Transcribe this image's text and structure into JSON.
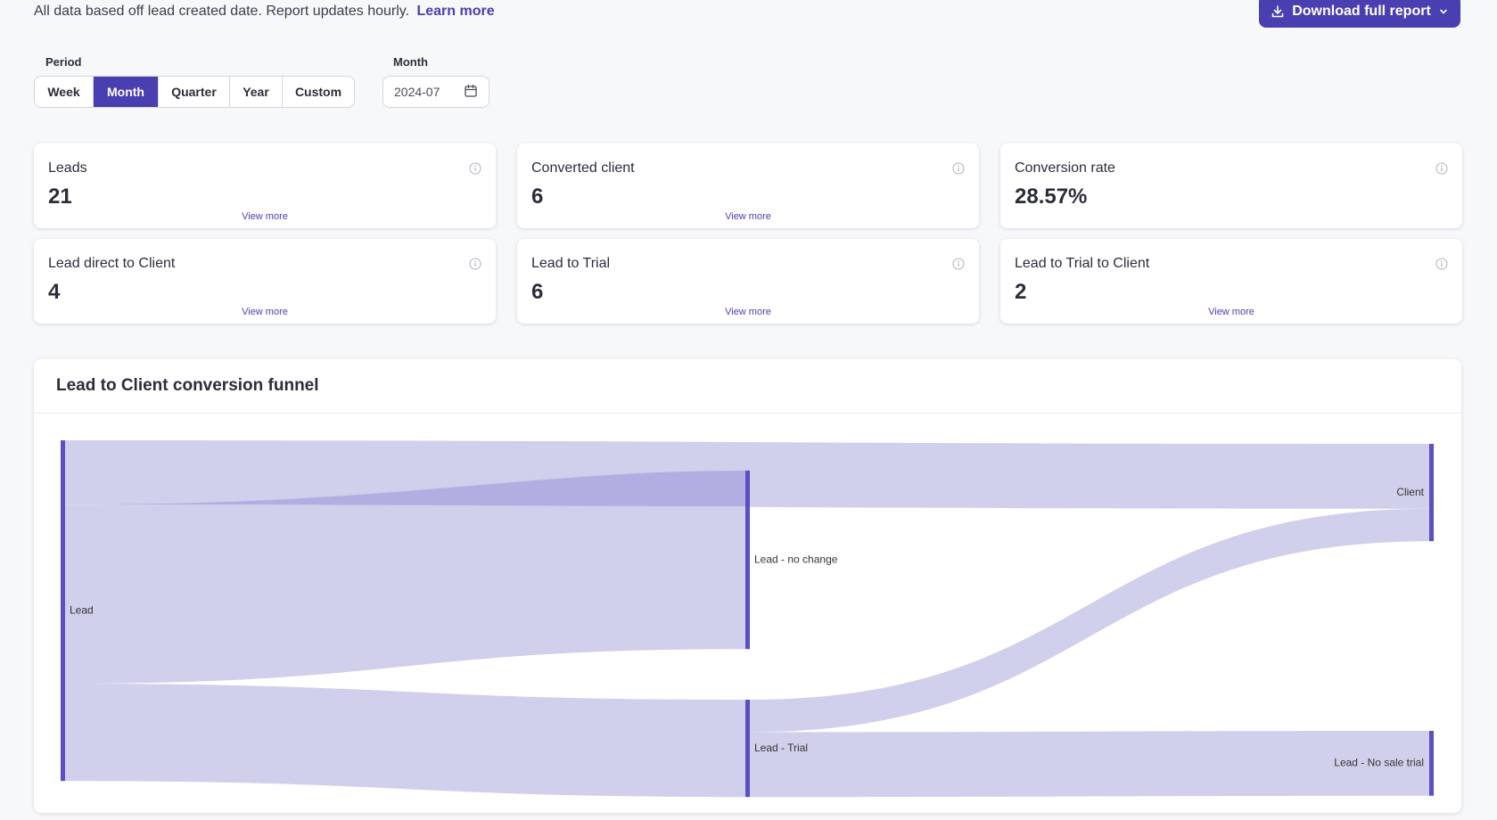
{
  "header": {
    "info_text": "All data based off lead created date. Report updates hourly.",
    "learn_more": "Learn more",
    "download_label": "Download full report"
  },
  "filters": {
    "period_label": "Period",
    "period_options": [
      "Week",
      "Month",
      "Quarter",
      "Year",
      "Custom"
    ],
    "period_selected": "Month",
    "month_label": "Month",
    "month_value": "2024-07"
  },
  "cards": [
    {
      "title": "Leads",
      "value": "21",
      "link": "View more"
    },
    {
      "title": "Converted client",
      "value": "6",
      "link": "View more"
    },
    {
      "title": "Conversion rate",
      "value": "28.57%",
      "link": ""
    },
    {
      "title": "Lead direct to Client",
      "value": "4",
      "link": "View more"
    },
    {
      "title": "Lead to Trial",
      "value": "6",
      "link": "View more"
    },
    {
      "title": "Lead to Trial to Client",
      "value": "2",
      "link": "View more"
    }
  ],
  "funnel": {
    "title": "Lead to Client conversion funnel",
    "nodes": [
      {
        "id": "lead",
        "label": "Lead"
      },
      {
        "id": "no_change",
        "label": "Lead - no change"
      },
      {
        "id": "trial",
        "label": "Lead - Trial"
      },
      {
        "id": "client",
        "label": "Client"
      },
      {
        "id": "no_sale",
        "label": "Lead - No sale trial"
      }
    ],
    "links": [
      {
        "source": "lead",
        "target": "client",
        "value": 4
      },
      {
        "source": "lead",
        "target": "no_change",
        "value": 11
      },
      {
        "source": "lead",
        "target": "trial",
        "value": 6
      },
      {
        "source": "trial",
        "target": "client",
        "value": 2
      },
      {
        "source": "trial",
        "target": "no_sale",
        "value": 4
      }
    ],
    "colors": {
      "node": "#5b4fc4",
      "link": "#cfcdeb",
      "link_highlight": "#ada8e0"
    }
  },
  "icons": {
    "download": "download-icon",
    "chevron": "chevron-down-icon",
    "calendar": "calendar-icon",
    "info": "info-icon"
  }
}
